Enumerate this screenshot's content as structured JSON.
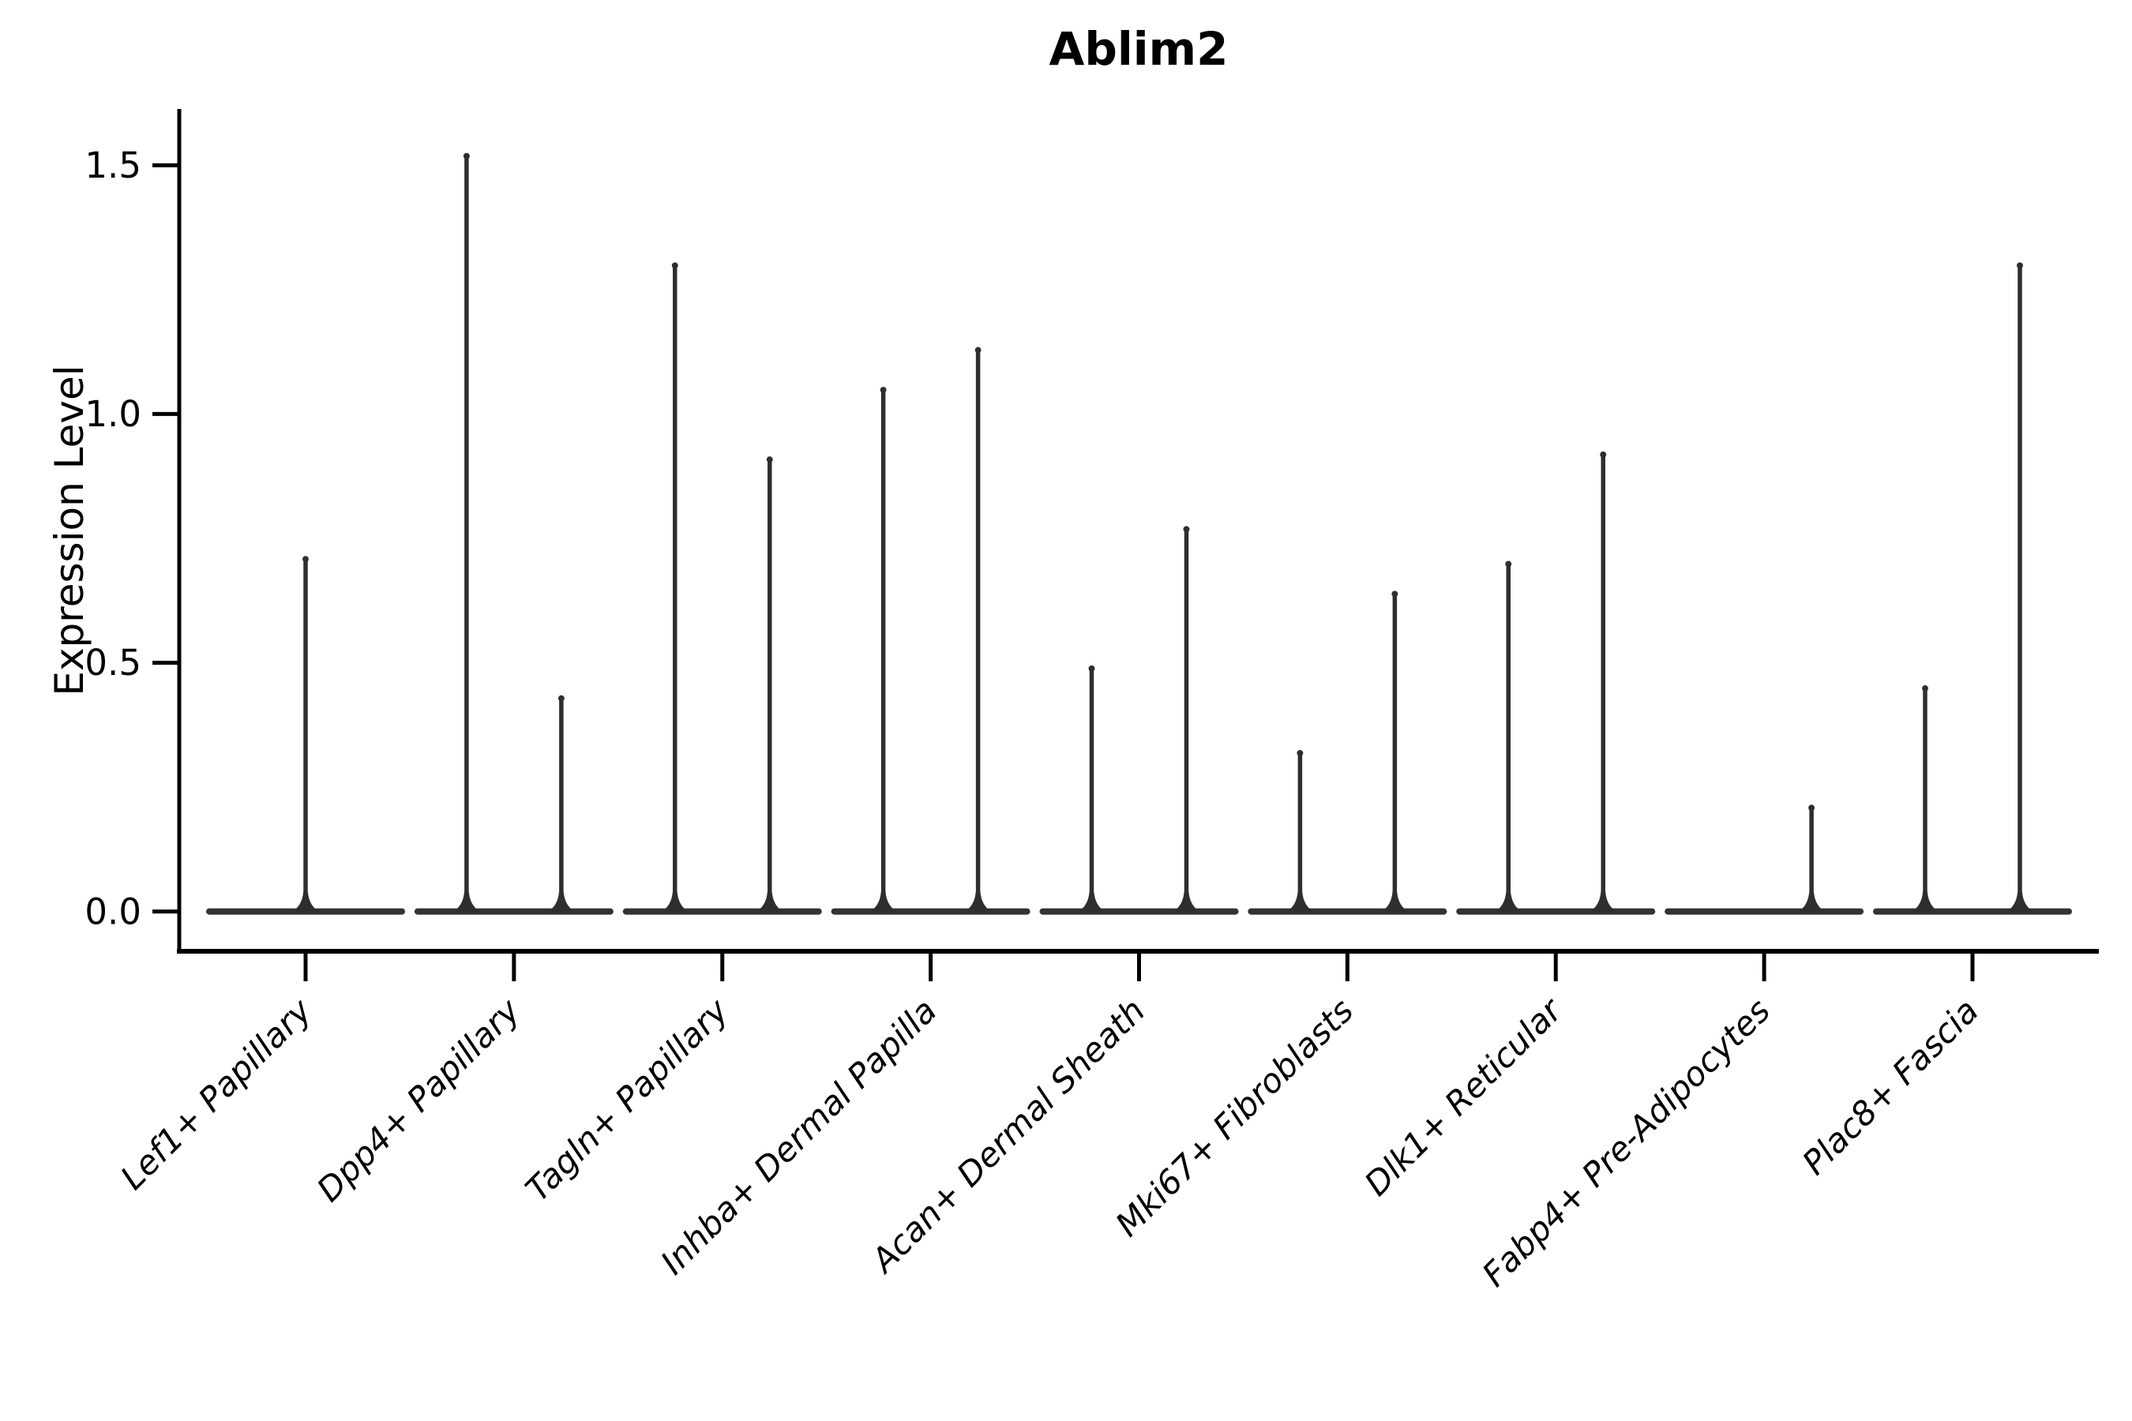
{
  "figure": {
    "background": "#ffffff"
  },
  "chart_data": {
    "type": "violin",
    "title": "Ablim2",
    "xlabel": "",
    "ylabel": "Expression Level",
    "categories": [
      "Lef1+ Papillary",
      "Dpp4+ Papillary",
      "Tagln+ Papillary",
      "Inhba+ Dermal Papilla",
      "Acan+ Dermal Sheath",
      "Mki67+ Fibroblasts",
      "Dlk1+ Reticular",
      "Fabp4+ Pre-Adipocytes",
      "Plac8+ Fascia"
    ],
    "yticks": [
      {
        "value": 0.0,
        "label": "0.0"
      },
      {
        "value": 0.5,
        "label": "0.5"
      },
      {
        "value": 1.0,
        "label": "1.0"
      },
      {
        "value": 1.5,
        "label": "1.5"
      }
    ],
    "ylim": [
      -0.08,
      1.61
    ],
    "grid": false,
    "legend": null,
    "x_tick_rotation_deg": 45,
    "x_tick_style": "italic",
    "series": [
      {
        "category": "Lef1+ Papillary",
        "violins": [
          {
            "position": "center",
            "max": 0.71
          }
        ]
      },
      {
        "category": "Dpp4+ Papillary",
        "violins": [
          {
            "position": "left",
            "max": 1.52
          },
          {
            "position": "right",
            "max": 0.43
          }
        ]
      },
      {
        "category": "Tagln+ Papillary",
        "violins": [
          {
            "position": "left",
            "max": 1.3
          },
          {
            "position": "right",
            "max": 0.91
          }
        ]
      },
      {
        "category": "Inhba+ Dermal Papilla",
        "violins": [
          {
            "position": "left",
            "max": 1.05
          },
          {
            "position": "right",
            "max": 1.13
          }
        ]
      },
      {
        "category": "Acan+ Dermal Sheath",
        "violins": [
          {
            "position": "left",
            "max": 0.49
          },
          {
            "position": "right",
            "max": 0.77
          }
        ]
      },
      {
        "category": "Mki67+ Fibroblasts",
        "violins": [
          {
            "position": "left",
            "max": 0.32
          },
          {
            "position": "right",
            "max": 0.64
          }
        ]
      },
      {
        "category": "Dlk1+ Reticular",
        "violins": [
          {
            "position": "left",
            "max": 0.7
          },
          {
            "position": "right",
            "max": 0.92
          }
        ]
      },
      {
        "category": "Fabp4+ Pre-Adipocytes",
        "violins": [
          {
            "position": "left",
            "max": 0.0
          },
          {
            "position": "right",
            "max": 0.21
          }
        ]
      },
      {
        "category": "Plac8+ Fascia",
        "violins": [
          {
            "position": "left",
            "max": 0.45
          },
          {
            "position": "right",
            "max": 1.3
          }
        ]
      }
    ],
    "baseline_value": 0.0,
    "colors": {
      "violin": "#2e2e2e",
      "baseline": "#333333",
      "axis": "#000000",
      "text": "#000000",
      "background": "#ffffff"
    }
  }
}
